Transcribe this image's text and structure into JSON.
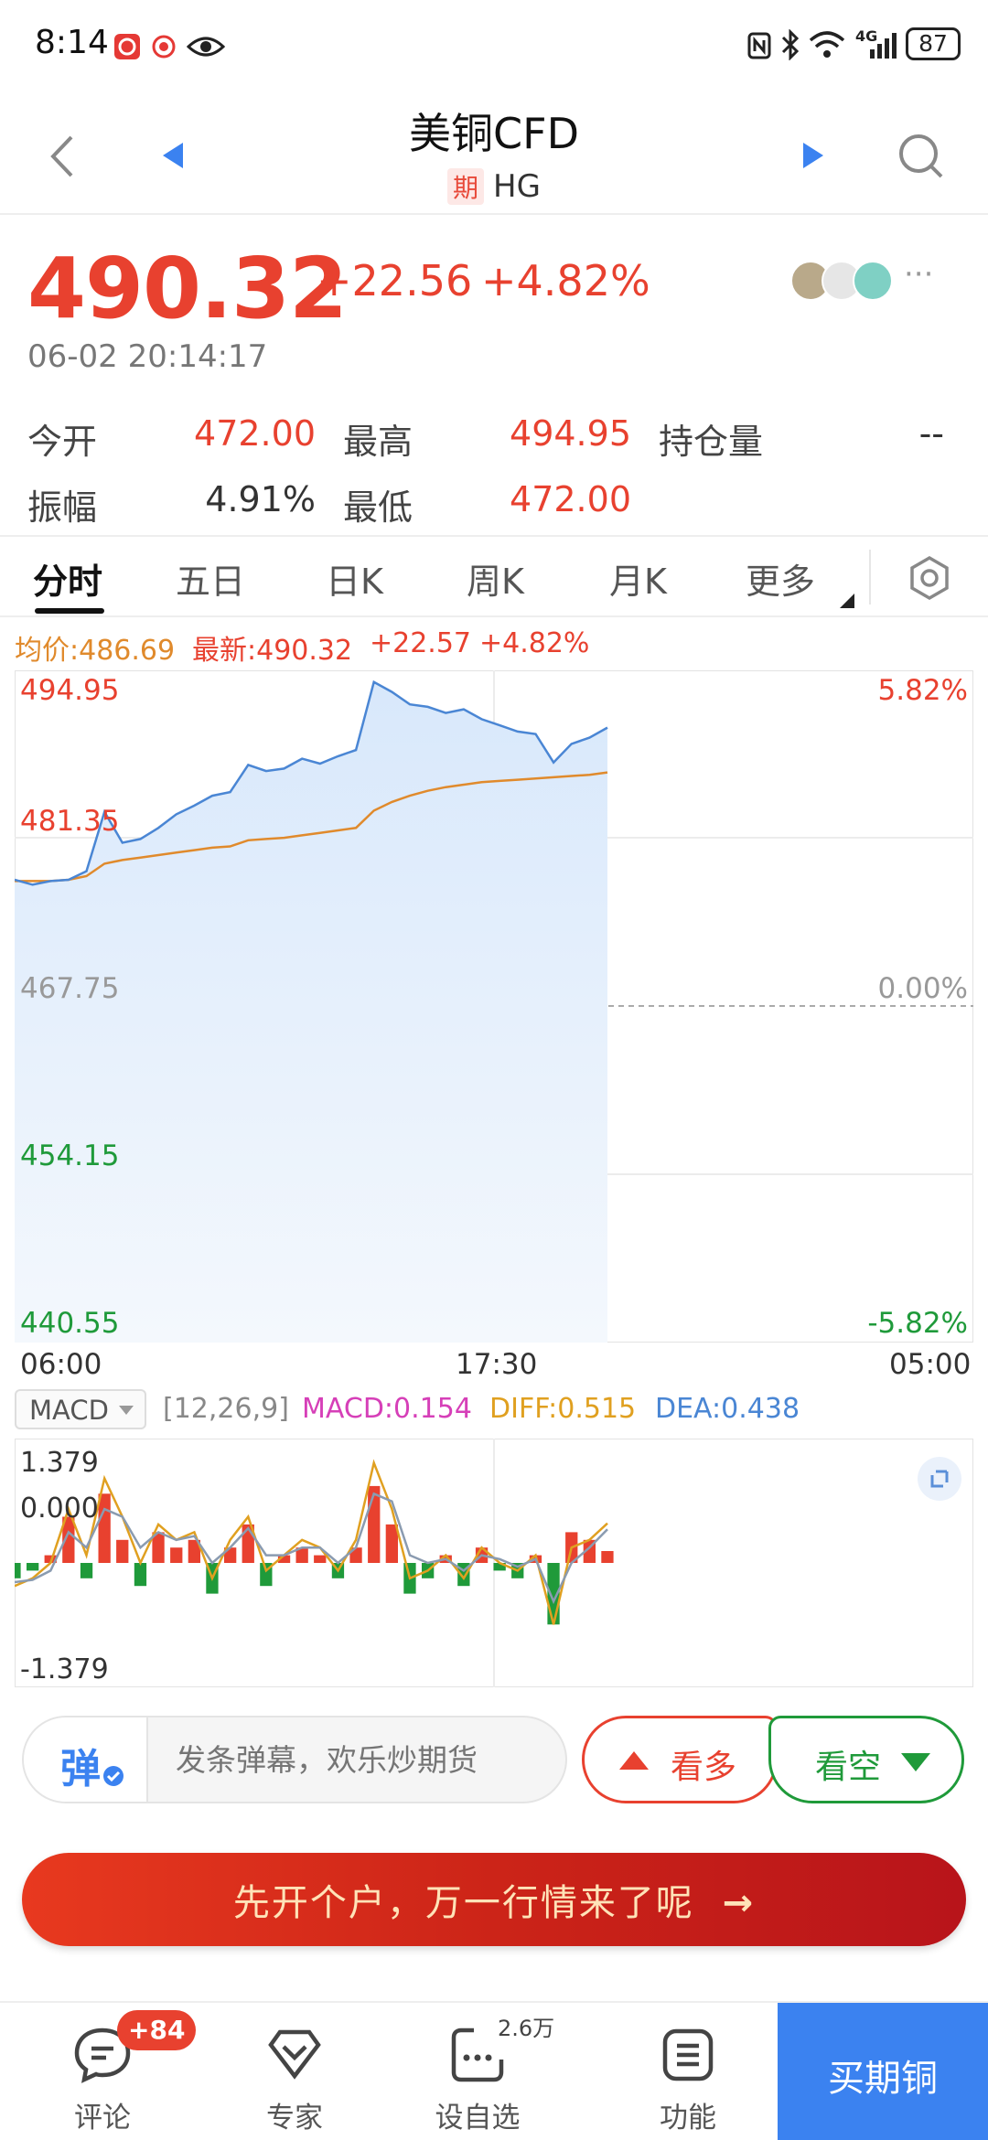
{
  "status_bar": {
    "time": "8:14",
    "battery": "87",
    "network": "4G"
  },
  "header": {
    "title": "美铜CFD",
    "tag": "期",
    "code": "HG"
  },
  "quote": {
    "price": "490.32",
    "change": "+22.56",
    "change_pct": "+4.82%",
    "timestamp": "06-02 20:14:17",
    "more": "···"
  },
  "stats": {
    "open_label": "今开",
    "open": "472.00",
    "high_label": "最高",
    "high": "494.95",
    "oi_label": "持仓量",
    "oi": "--",
    "amp_label": "振幅",
    "amp": "4.91%",
    "low_label": "最低",
    "low": "472.00"
  },
  "tabs": [
    "分时",
    "五日",
    "日K",
    "周K",
    "月K",
    "更多"
  ],
  "legend": {
    "avg": "均价:486.69",
    "latest": "最新:490.32",
    "chg": "+22.57",
    "pct": "+4.82%"
  },
  "colors": {
    "up": "#e8412f",
    "down": "#1f9a3a",
    "price_line": "#4a86d4",
    "avg_line": "#e08a2c",
    "accent_blue": "#3b82f0"
  },
  "chart_data": {
    "type": "line",
    "y_left_ticks": [
      "494.95",
      "481.35",
      "467.75",
      "454.15",
      "440.55"
    ],
    "y_right_ticks": [
      "5.82%",
      "",
      "0.00%",
      "",
      "-5.82%"
    ],
    "x_ticks": [
      "06:00",
      "17:30",
      "05:00"
    ],
    "ylim": [
      440.55,
      494.95
    ],
    "prev_close": 467.75,
    "series": [
      {
        "name": "最新",
        "values": [
          478.0,
          477.6,
          477.9,
          478.0,
          478.7,
          483.5,
          481.0,
          481.3,
          482.2,
          483.3,
          484.0,
          484.8,
          485.1,
          487.3,
          486.8,
          487.0,
          487.8,
          487.4,
          488.0,
          488.5,
          494.0,
          493.2,
          492.2,
          492.0,
          491.5,
          491.8,
          491.0,
          490.5,
          490.0,
          489.8,
          487.5,
          489.0,
          489.5,
          490.32
        ]
      },
      {
        "name": "均价",
        "values": [
          477.9,
          477.9,
          477.9,
          478.0,
          478.3,
          479.3,
          479.6,
          479.8,
          480.0,
          480.2,
          480.4,
          480.6,
          480.7,
          481.2,
          481.3,
          481.4,
          481.6,
          481.8,
          482.0,
          482.2,
          483.6,
          484.3,
          484.8,
          485.2,
          485.5,
          485.7,
          485.9,
          486.0,
          486.1,
          486.2,
          486.3,
          486.4,
          486.5,
          486.69
        ]
      }
    ]
  },
  "macd": {
    "indicator": "MACD",
    "params": "[12,26,9]",
    "macd": "MACD:0.154",
    "diff": "DIFF:0.515",
    "dea": "DEA:0.438",
    "y_ticks": [
      "1.379",
      "0.000",
      "-1.379"
    ],
    "ylim": [
      -1.379,
      1.379
    ],
    "hist": [
      -0.2,
      -0.1,
      0.1,
      0.6,
      -0.2,
      0.9,
      0.3,
      -0.3,
      0.4,
      0.2,
      0.3,
      -0.4,
      0.2,
      0.5,
      -0.3,
      0.1,
      0.2,
      0.1,
      -0.2,
      0.2,
      1.0,
      0.5,
      -0.4,
      -0.2,
      0.1,
      -0.3,
      0.2,
      -0.1,
      -0.2,
      0.1,
      -0.8,
      0.4,
      0.3,
      0.154
    ],
    "diff_values": [
      -0.3,
      -0.2,
      0.0,
      0.7,
      0.1,
      1.1,
      0.6,
      0.0,
      0.5,
      0.3,
      0.4,
      -0.2,
      0.3,
      0.6,
      -0.1,
      0.1,
      0.3,
      0.2,
      -0.1,
      0.3,
      1.3,
      0.7,
      -0.2,
      -0.1,
      0.1,
      -0.2,
      0.2,
      0.0,
      -0.1,
      0.1,
      -0.8,
      0.2,
      0.3,
      0.515
    ],
    "dea_values": [
      -0.25,
      -0.22,
      -0.1,
      0.4,
      0.2,
      0.7,
      0.6,
      0.2,
      0.4,
      0.3,
      0.35,
      0.0,
      0.2,
      0.45,
      0.1,
      0.1,
      0.2,
      0.2,
      0.0,
      0.2,
      0.9,
      0.8,
      0.1,
      0.0,
      0.05,
      -0.1,
      0.1,
      0.05,
      -0.05,
      0.05,
      -0.5,
      0.0,
      0.2,
      0.438
    ]
  },
  "danmaku": {
    "icon_label": "弹",
    "placeholder": "发条弹幕，欢乐炒期货",
    "bull": "看多",
    "bear": "看空"
  },
  "banner": {
    "text": "先开个户，万一行情来了呢",
    "arrow": "→"
  },
  "nav": {
    "comment": "评论",
    "comment_badge": "+84",
    "expert": "专家",
    "watch": "设自选",
    "watch_count": "2.6万",
    "func": "功能",
    "buy": "买期铜"
  }
}
